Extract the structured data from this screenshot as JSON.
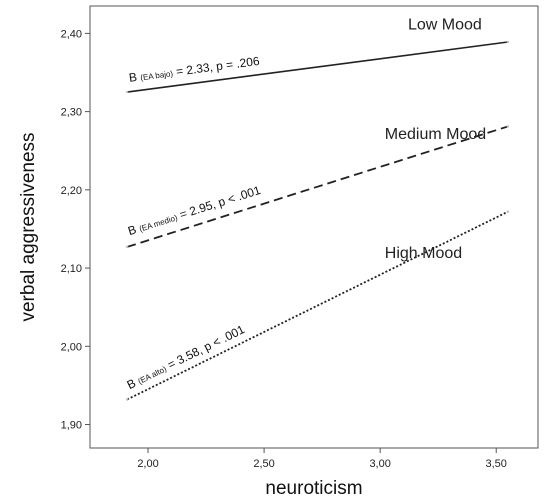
{
  "chart_data": {
    "type": "line",
    "xlabel": "neuroticism",
    "ylabel": "verbal aggressiveness",
    "xlim": [
      1.75,
      3.68
    ],
    "ylim": [
      1.87,
      2.435
    ],
    "x_ticks": [
      2.0,
      2.5,
      3.0,
      3.5
    ],
    "x_tick_labels": [
      "2,00",
      "2,50",
      "3,00",
      "3,50"
    ],
    "y_ticks": [
      1.9,
      2.0,
      2.1,
      2.2,
      2.3,
      2.4
    ],
    "y_tick_labels": [
      "1,90",
      "2,00",
      "2,10",
      "2,20",
      "2,30",
      "2,40"
    ],
    "grid": false,
    "series": [
      {
        "name": "Low Mood",
        "style": "solid",
        "x": [
          1.91,
          3.55
        ],
        "y": [
          2.325,
          2.389
        ],
        "annotation": {
          "prefix": "B",
          "sub": "(EA bajo)",
          "rest": " = 2.33, p = .206"
        }
      },
      {
        "name": "Medium Mood",
        "style": "dashed",
        "x": [
          1.91,
          3.55
        ],
        "y": [
          2.127,
          2.281
        ],
        "annotation": {
          "prefix": "B",
          "sub": "(EA medio)",
          "rest": " = 2.95, p < .001"
        }
      },
      {
        "name": "High Mood",
        "style": "dotted",
        "x": [
          1.91,
          3.55
        ],
        "y": [
          1.932,
          2.172
        ],
        "annotation": {
          "prefix": "B",
          "sub": "(EA alto)",
          "rest": " = 3.58, p < .001"
        }
      }
    ],
    "colors": {
      "background": "#ffffff",
      "line": "#222222",
      "axis": "#444444"
    }
  }
}
